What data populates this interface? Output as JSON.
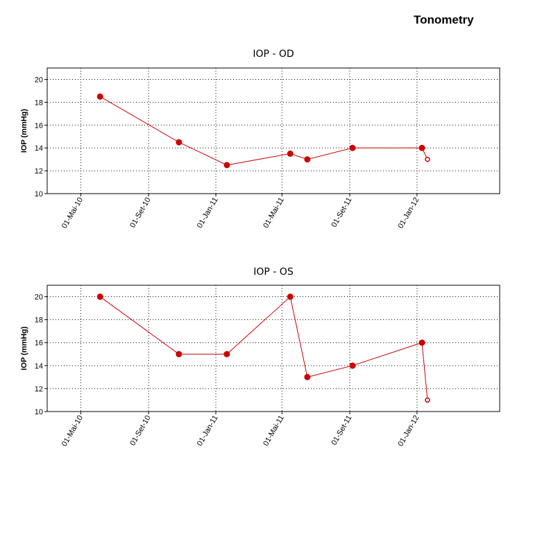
{
  "page": {
    "title": "Tonometry"
  },
  "colors": {
    "series": "#cc0000",
    "grid": "#000000",
    "axis": "#000000"
  },
  "chart_data": [
    {
      "type": "line",
      "title": "IOP - OD",
      "xlabel": "",
      "ylabel": "IOP (mmHg)",
      "ylim": [
        10,
        21
      ],
      "yticks": [
        "10",
        "12",
        "14",
        "16",
        "18",
        "20"
      ],
      "xlim": [
        "2010-03-01",
        "2012-05-30"
      ],
      "xticks": [
        "01-Mai-10",
        "01-Set-10",
        "01-Jan-11",
        "01-Mai-11",
        "01-Set-11",
        "01-Jan-12"
      ],
      "grid": true,
      "series": [
        {
          "x": [
            "2010-06-05",
            "2010-10-26",
            "2011-01-21",
            "2011-05-16",
            "2011-06-16",
            "2011-09-06",
            "2012-01-10",
            "2012-01-20"
          ],
          "y": [
            18.5,
            14.5,
            12.5,
            13.5,
            13,
            14,
            14,
            13
          ],
          "hollow_last": true
        }
      ]
    },
    {
      "type": "line",
      "title": "IOP - OS",
      "xlabel": "",
      "ylabel": "IOP (mmHg)",
      "ylim": [
        10,
        21
      ],
      "yticks": [
        "10",
        "12",
        "14",
        "16",
        "18",
        "20"
      ],
      "xlim": [
        "2010-03-01",
        "2012-05-30"
      ],
      "xticks": [
        "01-Mai-10",
        "01-Set-10",
        "01-Jan-11",
        "01-Mai-11",
        "01-Set-11",
        "01-Jan-12"
      ],
      "grid": true,
      "series": [
        {
          "x": [
            "2010-06-05",
            "2010-10-26",
            "2011-01-21",
            "2011-05-16",
            "2011-06-16",
            "2011-09-06",
            "2012-01-10",
            "2012-01-20"
          ],
          "y": [
            20,
            15,
            15,
            20,
            13,
            14,
            16,
            11
          ],
          "hollow_last": true
        }
      ]
    }
  ]
}
